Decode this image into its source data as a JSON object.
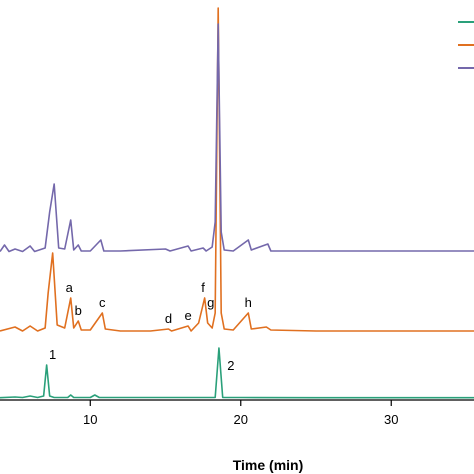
{
  "chart_data": {
    "type": "line",
    "title": "",
    "xlabel": "Time (min)",
    "ylabel": "",
    "xlim": [
      4,
      35.5
    ],
    "xticks": [
      10,
      20,
      30
    ],
    "xtick_labels": [
      "10",
      "20",
      "30"
    ],
    "grid": false,
    "legend": {
      "position": "top-right",
      "entries": [
        "",
        "",
        ""
      ]
    },
    "series": [
      {
        "color": "#2aa07a",
        "baseline": 0,
        "points": [
          [
            4,
            0.3
          ],
          [
            5,
            1
          ],
          [
            5.5,
            0.5
          ],
          [
            6,
            2
          ],
          [
            6.5,
            0.5
          ],
          [
            6.9,
            2
          ],
          [
            7.1,
            33
          ],
          [
            7.3,
            2
          ],
          [
            7.6,
            0.5
          ],
          [
            8.5,
            0.5
          ],
          [
            8.7,
            3
          ],
          [
            8.9,
            0.5
          ],
          [
            10,
            0.5
          ],
          [
            10.3,
            3
          ],
          [
            10.6,
            0.5
          ],
          [
            12,
            0.5
          ],
          [
            15,
            0.5
          ],
          [
            18.3,
            0.5
          ],
          [
            18.55,
            50
          ],
          [
            18.8,
            0.5
          ],
          [
            20,
            0.5
          ],
          [
            25,
            0.3
          ],
          [
            30,
            0.3
          ],
          [
            35.5,
            0.3
          ]
        ]
      },
      {
        "color": "#e07020",
        "baseline": 0,
        "points": [
          [
            4,
            2
          ],
          [
            5,
            6
          ],
          [
            5.5,
            2
          ],
          [
            6,
            7
          ],
          [
            6.5,
            2
          ],
          [
            7,
            5
          ],
          [
            7.2,
            40
          ],
          [
            7.5,
            80
          ],
          [
            7.8,
            8
          ],
          [
            8.3,
            5
          ],
          [
            8.7,
            35
          ],
          [
            8.9,
            5
          ],
          [
            9.2,
            12
          ],
          [
            9.4,
            3
          ],
          [
            10,
            3
          ],
          [
            10.8,
            20
          ],
          [
            11,
            4
          ],
          [
            12,
            2
          ],
          [
            14,
            2
          ],
          [
            15.2,
            4
          ],
          [
            15.4,
            2
          ],
          [
            16.5,
            7
          ],
          [
            16.7,
            2
          ],
          [
            17.2,
            10
          ],
          [
            17.6,
            35
          ],
          [
            17.8,
            10
          ],
          [
            18.1,
            5
          ],
          [
            18.3,
            20
          ],
          [
            18.5,
            325
          ],
          [
            18.7,
            20
          ],
          [
            18.9,
            4
          ],
          [
            19.5,
            3
          ],
          [
            20.5,
            20
          ],
          [
            20.7,
            4
          ],
          [
            21.7,
            6
          ],
          [
            22,
            3
          ],
          [
            25,
            2
          ],
          [
            30,
            2
          ],
          [
            35.5,
            2
          ]
        ]
      },
      {
        "color": "#7468ab",
        "baseline": 0,
        "points": [
          [
            4,
            0.5
          ],
          [
            4.3,
            7
          ],
          [
            4.6,
            0.5
          ],
          [
            5,
            3
          ],
          [
            5.5,
            0.5
          ],
          [
            6,
            6
          ],
          [
            6.3,
            0.5
          ],
          [
            7,
            4
          ],
          [
            7.3,
            40
          ],
          [
            7.6,
            68
          ],
          [
            7.9,
            4
          ],
          [
            8.3,
            3
          ],
          [
            8.7,
            32
          ],
          [
            8.9,
            2
          ],
          [
            9.2,
            7
          ],
          [
            9.4,
            1
          ],
          [
            10,
            1
          ],
          [
            10.7,
            12
          ],
          [
            10.9,
            1
          ],
          [
            12,
            1
          ],
          [
            15,
            3
          ],
          [
            15.3,
            1
          ],
          [
            16.5,
            6
          ],
          [
            16.7,
            1
          ],
          [
            17.5,
            4
          ],
          [
            17.7,
            1
          ],
          [
            18.1,
            5
          ],
          [
            18.3,
            30
          ],
          [
            18.5,
            228
          ],
          [
            18.7,
            20
          ],
          [
            18.9,
            2
          ],
          [
            19.5,
            1
          ],
          [
            20.5,
            12
          ],
          [
            20.7,
            2
          ],
          [
            21.8,
            8
          ],
          [
            22,
            1
          ],
          [
            25,
            1
          ],
          [
            30,
            1
          ],
          [
            35.5,
            1
          ]
        ]
      }
    ],
    "annotations": [
      {
        "text": "1",
        "x": 7.1,
        "series": 0
      },
      {
        "text": "2",
        "x": 18.55,
        "series": 0
      },
      {
        "text": "a",
        "x": 8.6,
        "series": 1
      },
      {
        "text": "b",
        "x": 9.2,
        "series": 1
      },
      {
        "text": "c",
        "x": 10.8,
        "series": 1
      },
      {
        "text": "d",
        "x": 15.2,
        "series": 1
      },
      {
        "text": "e",
        "x": 16.5,
        "series": 1
      },
      {
        "text": "f",
        "x": 17.5,
        "series": 1
      },
      {
        "text": "g",
        "x": 18.0,
        "series": 1
      },
      {
        "text": "h",
        "x": 20.5,
        "series": 1
      }
    ]
  }
}
